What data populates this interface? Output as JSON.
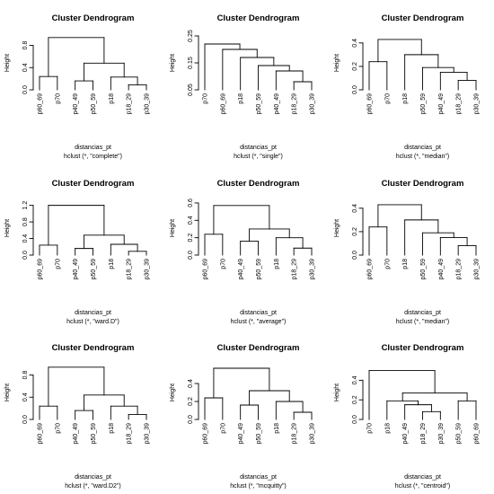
{
  "chart_data": [
    {
      "type": "dendrogram",
      "title": "Cluster Dendrogram",
      "ylabel": "Height",
      "xlabel": "distancias_pt",
      "sub": "hclust (*, \"complete\")",
      "ylim": [
        0,
        0.97
      ],
      "yticks": [
        0.0,
        0.4,
        0.8
      ],
      "yticklabels": [
        "0.0",
        "0.4",
        "0.8"
      ],
      "labels": [
        "p60_69",
        "p70",
        "p40_49",
        "p50_59",
        "p18",
        "p18_29",
        "p30_39"
      ],
      "leaf_top": [
        0.24,
        0.24,
        0.16,
        0.16,
        0.23,
        0.09,
        0.09
      ],
      "merges": [
        [
          -6,
          -7,
          0.09
        ],
        [
          -3,
          -4,
          0.16
        ],
        [
          -1,
          -2,
          0.24
        ],
        [
          -5,
          1,
          0.23
        ],
        [
          2,
          4,
          0.48
        ],
        [
          3,
          5,
          0.94
        ]
      ]
    },
    {
      "type": "dendrogram",
      "title": "Cluster Dendrogram",
      "ylabel": "Height",
      "xlabel": "distancias_pt",
      "sub": "hclust (*, \"single\")",
      "ylim": [
        0.05,
        0.25
      ],
      "yticks": [
        0.05,
        0.15,
        0.25
      ],
      "yticklabels": [
        "0.05",
        "0.15",
        "0.25"
      ],
      "labels": [
        "p70",
        "p60_69",
        "p18",
        "p50_59",
        "p40_49",
        "p18_29",
        "p30_39"
      ],
      "leaf_top": [
        0.22,
        0.2,
        0.17,
        0.14,
        0.12,
        0.08,
        0.08
      ],
      "merges": [
        [
          -6,
          -7,
          0.08
        ],
        [
          -5,
          1,
          0.12
        ],
        [
          -4,
          2,
          0.14
        ],
        [
          -3,
          3,
          0.17
        ],
        [
          -2,
          4,
          0.2
        ],
        [
          -1,
          5,
          0.22
        ]
      ]
    },
    {
      "type": "dendrogram",
      "title": "Cluster Dendrogram",
      "ylabel": "Height",
      "xlabel": "distancias_pt",
      "sub": "hclust (*, \"median\")",
      "ylim": [
        0,
        0.46
      ],
      "yticks": [
        0.0,
        0.2,
        0.4
      ],
      "yticklabels": [
        "0.0",
        "0.2",
        "0.4"
      ],
      "labels": [
        "p60_69",
        "p70",
        "p18",
        "p50_59",
        "p40_49",
        "p18_29",
        "p30_39"
      ],
      "leaf_top": [
        0.24,
        0.24,
        0.3,
        0.19,
        0.15,
        0.08,
        0.08
      ],
      "merges": [
        [
          -6,
          -7,
          0.08
        ],
        [
          -5,
          1,
          0.15
        ],
        [
          -4,
          2,
          0.19
        ],
        [
          -1,
          -2,
          0.24
        ],
        [
          -3,
          3,
          0.3
        ],
        [
          4,
          5,
          0.43
        ]
      ]
    },
    {
      "type": "dendrogram",
      "title": "Cluster Dendrogram",
      "ylabel": "Height",
      "xlabel": "distancias_pt",
      "sub": "hclust (*, \"ward.D\")",
      "ylim": [
        0,
        1.3
      ],
      "yticks": [
        0.0,
        0.4,
        0.8,
        1.2
      ],
      "yticklabels": [
        "0.0",
        "0.4",
        "0.8",
        "1.2"
      ],
      "labels": [
        "p60_69",
        "p70",
        "p40_49",
        "p50_59",
        "p18",
        "p18_29",
        "p30_39"
      ],
      "leaf_top": [
        0.24,
        0.24,
        0.16,
        0.16,
        0.26,
        0.09,
        0.09
      ],
      "merges": [
        [
          -6,
          -7,
          0.09
        ],
        [
          -3,
          -4,
          0.16
        ],
        [
          -1,
          -2,
          0.24
        ],
        [
          -5,
          1,
          0.26
        ],
        [
          2,
          4,
          0.48
        ],
        [
          3,
          5,
          1.2
        ]
      ]
    },
    {
      "type": "dendrogram",
      "title": "Cluster Dendrogram",
      "ylabel": "Height",
      "xlabel": "distancias_pt",
      "sub": "hclust (*, \"average\")",
      "ylim": [
        0,
        0.62
      ],
      "yticks": [
        0.0,
        0.2,
        0.4,
        0.6
      ],
      "yticklabels": [
        "0.0",
        "0.2",
        "0.4",
        "0.6"
      ],
      "labels": [
        "p60_69",
        "p70",
        "p40_49",
        "p50_59",
        "p18",
        "p18_29",
        "p30_39"
      ],
      "leaf_top": [
        0.24,
        0.24,
        0.16,
        0.16,
        0.2,
        0.08,
        0.08
      ],
      "merges": [
        [
          -6,
          -7,
          0.08
        ],
        [
          -3,
          -4,
          0.16
        ],
        [
          -5,
          1,
          0.2
        ],
        [
          -1,
          -2,
          0.24
        ],
        [
          2,
          3,
          0.3
        ],
        [
          4,
          5,
          0.57
        ]
      ]
    },
    {
      "type": "dendrogram",
      "title": "Cluster Dendrogram",
      "ylabel": "Height",
      "xlabel": "distancias_pt",
      "sub": "hclust (*, \"median\")",
      "ylim": [
        0,
        0.46
      ],
      "yticks": [
        0.0,
        0.2,
        0.4
      ],
      "yticklabels": [
        "0.0",
        "0.2",
        "0.4"
      ],
      "labels": [
        "p60_69",
        "p70",
        "p18",
        "p50_59",
        "p40_49",
        "p18_29",
        "p30_39"
      ],
      "leaf_top": [
        0.24,
        0.24,
        0.3,
        0.19,
        0.15,
        0.08,
        0.08
      ],
      "merges": [
        [
          -6,
          -7,
          0.08
        ],
        [
          -5,
          1,
          0.15
        ],
        [
          -4,
          2,
          0.19
        ],
        [
          -1,
          -2,
          0.24
        ],
        [
          -3,
          3,
          0.3
        ],
        [
          4,
          5,
          0.43
        ]
      ]
    },
    {
      "type": "dendrogram",
      "title": "Cluster Dendrogram",
      "ylabel": "Height",
      "xlabel": "distancias_pt",
      "sub": "hclust (*, \"ward.D2\")",
      "ylim": [
        0,
        0.97
      ],
      "yticks": [
        0.0,
        0.4,
        0.8
      ],
      "yticklabels": [
        "0.0",
        "0.4",
        "0.8"
      ],
      "labels": [
        "p60_69",
        "p70",
        "p40_49",
        "p50_59",
        "p18",
        "p18_29",
        "p30_39"
      ],
      "leaf_top": [
        0.24,
        0.24,
        0.16,
        0.16,
        0.24,
        0.09,
        0.09
      ],
      "merges": [
        [
          -6,
          -7,
          0.09
        ],
        [
          -3,
          -4,
          0.16
        ],
        [
          -1,
          -2,
          0.24
        ],
        [
          -5,
          1,
          0.24
        ],
        [
          2,
          4,
          0.44
        ],
        [
          3,
          5,
          0.94
        ]
      ]
    },
    {
      "type": "dendrogram",
      "title": "Cluster Dendrogram",
      "ylabel": "Height",
      "xlabel": "distancias_pt",
      "sub": "hclust (*, \"mcquitty\")",
      "ylim": [
        0,
        0.6
      ],
      "yticks": [
        0.0,
        0.2,
        0.4
      ],
      "yticklabels": [
        "0.0",
        "0.2",
        "0.4"
      ],
      "labels": [
        "p60_69",
        "p70",
        "p40_49",
        "p50_59",
        "p18",
        "p18_29",
        "p30_39"
      ],
      "leaf_top": [
        0.24,
        0.24,
        0.16,
        0.16,
        0.2,
        0.08,
        0.08
      ],
      "merges": [
        [
          -6,
          -7,
          0.08
        ],
        [
          -3,
          -4,
          0.16
        ],
        [
          -5,
          1,
          0.2
        ],
        [
          -1,
          -2,
          0.24
        ],
        [
          2,
          3,
          0.32
        ],
        [
          4,
          5,
          0.57
        ]
      ]
    },
    {
      "type": "dendrogram",
      "title": "Cluster Dendrogram",
      "ylabel": "Height",
      "xlabel": "distancias_pt",
      "sub": "hclust (*, \"centroid\")",
      "ylim": [
        0,
        0.55
      ],
      "yticks": [
        0.0,
        0.2,
        0.4
      ],
      "yticklabels": [
        "0.0",
        "0.2",
        "0.4"
      ],
      "labels": [
        "p70",
        "p18",
        "p40_49",
        "p18_29",
        "p30_39",
        "p50_59",
        "p60_69"
      ],
      "leaf_top": [
        0.5,
        0.19,
        0.15,
        0.08,
        0.08,
        0.19,
        0.19
      ],
      "merges": [
        [
          -4,
          -5,
          0.08
        ],
        [
          -3,
          1,
          0.15
        ],
        [
          -6,
          -7,
          0.19
        ],
        [
          -2,
          2,
          0.19
        ],
        [
          4,
          3,
          0.27
        ],
        [
          -1,
          5,
          0.5
        ]
      ]
    }
  ]
}
